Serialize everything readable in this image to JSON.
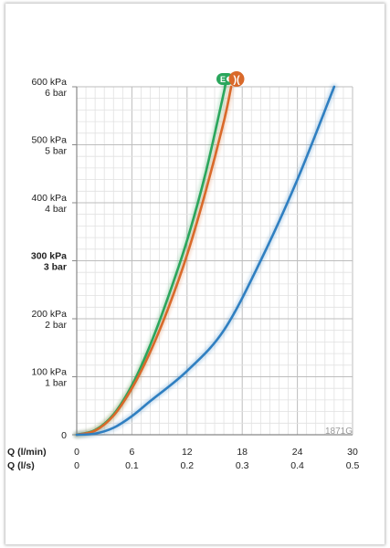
{
  "figure_code": "1871G",
  "colors": {
    "green": "#2aa65c",
    "orange": "#d9692a",
    "blue": "#2f7fc1",
    "grid_minor": "#e1e1e1",
    "grid_major": "#bdbdbd",
    "axis": "#888888"
  },
  "chart_data": {
    "type": "line",
    "xlabel": "Q (l/min)",
    "xlabel2": "Q (l/s)",
    "xlim": [
      0,
      30
    ],
    "ylim": [
      0,
      600
    ],
    "x_ticks": [
      "0",
      "6",
      "12",
      "18",
      "24",
      "30"
    ],
    "x_ticks2": [
      "0",
      "0.1",
      "0.2",
      "0.3",
      "0.4",
      "0.5"
    ],
    "y_ticks": [
      {
        "value": 0,
        "kpa": "0",
        "bar": ""
      },
      {
        "value": 100,
        "kpa": "100 kPa",
        "bar": "1 bar"
      },
      {
        "value": 200,
        "kpa": "200 kPa",
        "bar": "2 bar"
      },
      {
        "value": 300,
        "kpa": "300 kPa",
        "bar": "3 bar",
        "bold": true
      },
      {
        "value": 400,
        "kpa": "400 kPa",
        "bar": "4 bar"
      },
      {
        "value": 500,
        "kpa": "500 kPa",
        "bar": "5 bar"
      },
      {
        "value": 600,
        "kpa": "600 kPa",
        "bar": "6 bar"
      }
    ],
    "grid": true,
    "series": [
      {
        "color": "green",
        "x": [
          0,
          2,
          4,
          6,
          8,
          10,
          12,
          14,
          16,
          16.1
        ],
        "y": [
          0,
          8,
          35,
          85,
          155,
          240,
          335,
          450,
          590,
          600
        ]
      },
      {
        "color": "orange",
        "x": [
          0,
          2,
          4,
          6,
          8,
          10,
          12,
          14,
          16,
          16.8
        ],
        "y": [
          0,
          7,
          33,
          80,
          143,
          220,
          310,
          418,
          540,
          600
        ]
      },
      {
        "color": "blue",
        "x": [
          0,
          2,
          4,
          6,
          8,
          12,
          16,
          20,
          24,
          28
        ],
        "y": [
          0,
          2,
          12,
          32,
          58,
          110,
          180,
          300,
          440,
          600
        ]
      }
    ],
    "markers": [
      {
        "label": "E",
        "color": "green"
      },
      {
        "label": ")(",
        "color": "orange"
      }
    ]
  }
}
